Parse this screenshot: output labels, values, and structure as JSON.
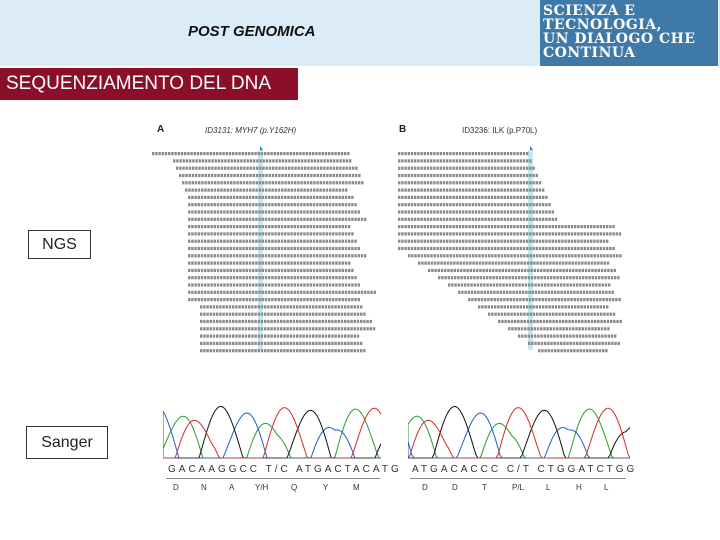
{
  "header": {
    "title": "POST GENOMICA"
  },
  "logo": {
    "lines": [
      "SCIENZA E",
      "TECNOLOGIA,",
      "UN DIALOGO CHE",
      "CONTINUA"
    ]
  },
  "section_title": "SEQUENZIAMENTO DEL DNA",
  "labels": {
    "ngs": "NGS",
    "sanger": "Sanger"
  },
  "panels": {
    "a": {
      "letter": "A",
      "id": "ID3131: MYH7 (p.Y162H)"
    },
    "b": {
      "letter": "B",
      "id": "ID3236: ILK (p.P70L)"
    }
  },
  "sanger": {
    "a": {
      "bases": "GACAAGGCC T/C ATGACTACATG",
      "aa": [
        "D",
        "N",
        "A",
        "Y/H",
        "Q",
        "Y",
        "M"
      ]
    },
    "b": {
      "bases": "ATGACACCC C/T CTGGATCTGG",
      "aa": [
        "D",
        "D",
        "T",
        "P/L",
        "L",
        "H",
        "L"
      ]
    }
  },
  "colors": {
    "accent": "#8c0f2a",
    "topbar": "#dcecf6",
    "logo": "#3f79a8",
    "highlight": "#7ec8e3"
  }
}
